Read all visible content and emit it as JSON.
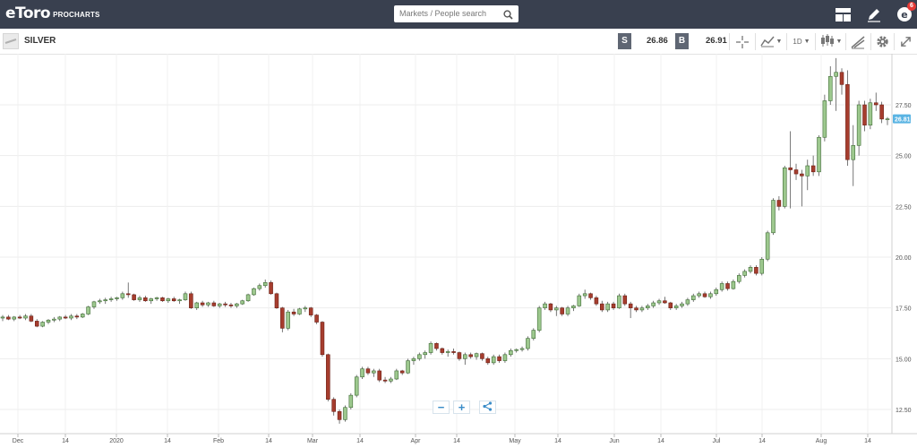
{
  "app": {
    "logo": "eToro",
    "logo_sub": "PROCHARTS",
    "search_placeholder": "Markets / People search",
    "notification_count": "6",
    "icons": [
      "layout-icon",
      "edit-icon",
      "user-avatar-icon"
    ]
  },
  "instrument": {
    "name": "SILVER",
    "sell_label": "S",
    "sell_price": "26.86",
    "buy_label": "B",
    "buy_price": "26.91",
    "interval": "1D"
  },
  "colors": {
    "up": "#9dc88e",
    "down": "#a63d2e",
    "price_tag": "#5ab4e3",
    "topbar": "#39404f"
  },
  "chart_data": {
    "type": "candlestick",
    "title": "SILVER",
    "last_price": 26.81,
    "y_ticks": [
      12.5,
      15.0,
      17.5,
      20.0,
      22.5,
      25.0,
      27.5
    ],
    "y_tick_labels": [
      "12.50",
      "15.00",
      "17.50",
      "20.00",
      "22.50",
      "25.00",
      "27.50"
    ],
    "x_tick_labels": [
      "Dec",
      "14",
      "2020",
      "14",
      "Feb",
      "14",
      "Mar",
      "14",
      "Apr",
      "14",
      "May",
      "14",
      "Jun",
      "14",
      "Jul",
      "14",
      "Aug",
      "14"
    ],
    "grid": true,
    "candles": [
      {
        "o": 17.0,
        "h": 17.15,
        "l": 16.85,
        "c": 17.05
      },
      {
        "o": 17.05,
        "h": 17.15,
        "l": 16.9,
        "c": 16.95
      },
      {
        "o": 16.95,
        "h": 17.1,
        "l": 16.85,
        "c": 17.05
      },
      {
        "o": 17.05,
        "h": 17.15,
        "l": 16.95,
        "c": 17.0
      },
      {
        "o": 17.0,
        "h": 17.2,
        "l": 16.9,
        "c": 17.1
      },
      {
        "o": 17.1,
        "h": 17.2,
        "l": 16.8,
        "c": 16.85
      },
      {
        "o": 16.85,
        "h": 16.95,
        "l": 16.55,
        "c": 16.6
      },
      {
        "o": 16.6,
        "h": 16.85,
        "l": 16.55,
        "c": 16.8
      },
      {
        "o": 16.8,
        "h": 16.95,
        "l": 16.7,
        "c": 16.9
      },
      {
        "o": 16.9,
        "h": 17.05,
        "l": 16.8,
        "c": 16.95
      },
      {
        "o": 16.95,
        "h": 17.1,
        "l": 16.85,
        "c": 17.05
      },
      {
        "o": 17.05,
        "h": 17.15,
        "l": 16.95,
        "c": 17.0
      },
      {
        "o": 17.0,
        "h": 17.2,
        "l": 16.9,
        "c": 17.1
      },
      {
        "o": 17.1,
        "h": 17.2,
        "l": 16.95,
        "c": 17.05
      },
      {
        "o": 17.05,
        "h": 17.25,
        "l": 17.0,
        "c": 17.2
      },
      {
        "o": 17.2,
        "h": 17.6,
        "l": 17.15,
        "c": 17.55
      },
      {
        "o": 17.55,
        "h": 17.85,
        "l": 17.45,
        "c": 17.8
      },
      {
        "o": 17.8,
        "h": 17.95,
        "l": 17.7,
        "c": 17.85
      },
      {
        "o": 17.85,
        "h": 18.0,
        "l": 17.7,
        "c": 17.9
      },
      {
        "o": 17.9,
        "h": 18.05,
        "l": 17.8,
        "c": 17.95
      },
      {
        "o": 17.95,
        "h": 18.05,
        "l": 17.85,
        "c": 18.0
      },
      {
        "o": 18.0,
        "h": 18.3,
        "l": 17.9,
        "c": 18.2
      },
      {
        "o": 18.2,
        "h": 18.75,
        "l": 18.0,
        "c": 18.15
      },
      {
        "o": 18.15,
        "h": 18.2,
        "l": 17.85,
        "c": 17.9
      },
      {
        "o": 17.9,
        "h": 18.1,
        "l": 17.8,
        "c": 18.0
      },
      {
        "o": 18.0,
        "h": 18.1,
        "l": 17.8,
        "c": 17.85
      },
      {
        "o": 17.85,
        "h": 18.0,
        "l": 17.7,
        "c": 17.95
      },
      {
        "o": 17.95,
        "h": 18.05,
        "l": 17.85,
        "c": 18.0
      },
      {
        "o": 18.0,
        "h": 18.05,
        "l": 17.8,
        "c": 17.85
      },
      {
        "o": 17.85,
        "h": 18.0,
        "l": 17.75,
        "c": 17.95
      },
      {
        "o": 17.95,
        "h": 18.05,
        "l": 17.8,
        "c": 17.85
      },
      {
        "o": 17.85,
        "h": 17.95,
        "l": 17.7,
        "c": 17.9
      },
      {
        "o": 17.9,
        "h": 18.3,
        "l": 17.85,
        "c": 18.2
      },
      {
        "o": 18.2,
        "h": 18.3,
        "l": 17.45,
        "c": 17.5
      },
      {
        "o": 17.5,
        "h": 17.8,
        "l": 17.4,
        "c": 17.75
      },
      {
        "o": 17.75,
        "h": 17.85,
        "l": 17.55,
        "c": 17.65
      },
      {
        "o": 17.65,
        "h": 17.8,
        "l": 17.55,
        "c": 17.75
      },
      {
        "o": 17.75,
        "h": 17.85,
        "l": 17.55,
        "c": 17.6
      },
      {
        "o": 17.6,
        "h": 17.75,
        "l": 17.5,
        "c": 17.7
      },
      {
        "o": 17.7,
        "h": 17.8,
        "l": 17.55,
        "c": 17.65
      },
      {
        "o": 17.65,
        "h": 17.75,
        "l": 17.5,
        "c": 17.6
      },
      {
        "o": 17.6,
        "h": 17.75,
        "l": 17.5,
        "c": 17.7
      },
      {
        "o": 17.7,
        "h": 17.9,
        "l": 17.65,
        "c": 17.85
      },
      {
        "o": 17.85,
        "h": 18.2,
        "l": 17.8,
        "c": 18.15
      },
      {
        "o": 18.15,
        "h": 18.5,
        "l": 18.1,
        "c": 18.45
      },
      {
        "o": 18.45,
        "h": 18.7,
        "l": 18.35,
        "c": 18.6
      },
      {
        "o": 18.6,
        "h": 18.9,
        "l": 18.5,
        "c": 18.75
      },
      {
        "o": 18.75,
        "h": 18.85,
        "l": 18.15,
        "c": 18.2
      },
      {
        "o": 18.2,
        "h": 18.25,
        "l": 17.45,
        "c": 17.5
      },
      {
        "o": 17.5,
        "h": 17.55,
        "l": 16.3,
        "c": 16.5
      },
      {
        "o": 16.5,
        "h": 17.4,
        "l": 16.4,
        "c": 17.3
      },
      {
        "o": 17.3,
        "h": 17.45,
        "l": 17.1,
        "c": 17.2
      },
      {
        "o": 17.2,
        "h": 17.5,
        "l": 17.15,
        "c": 17.45
      },
      {
        "o": 17.45,
        "h": 17.6,
        "l": 17.3,
        "c": 17.5
      },
      {
        "o": 17.5,
        "h": 17.55,
        "l": 17.05,
        "c": 17.15
      },
      {
        "o": 17.15,
        "h": 17.2,
        "l": 16.7,
        "c": 16.8
      },
      {
        "o": 16.8,
        "h": 16.85,
        "l": 15.1,
        "c": 15.2
      },
      {
        "o": 15.2,
        "h": 15.25,
        "l": 12.9,
        "c": 13.0
      },
      {
        "o": 13.0,
        "h": 13.1,
        "l": 12.2,
        "c": 12.4
      },
      {
        "o": 12.4,
        "h": 12.5,
        "l": 11.8,
        "c": 12.0
      },
      {
        "o": 12.0,
        "h": 12.7,
        "l": 11.9,
        "c": 12.6
      },
      {
        "o": 12.6,
        "h": 13.3,
        "l": 12.5,
        "c": 13.2
      },
      {
        "o": 13.2,
        "h": 14.2,
        "l": 13.1,
        "c": 14.1
      },
      {
        "o": 14.1,
        "h": 14.6,
        "l": 14.0,
        "c": 14.5
      },
      {
        "o": 14.5,
        "h": 14.6,
        "l": 14.2,
        "c": 14.3
      },
      {
        "o": 14.3,
        "h": 14.5,
        "l": 14.1,
        "c": 14.4
      },
      {
        "o": 14.4,
        "h": 14.5,
        "l": 13.85,
        "c": 13.95
      },
      {
        "o": 13.95,
        "h": 14.1,
        "l": 13.8,
        "c": 13.9
      },
      {
        "o": 13.9,
        "h": 14.1,
        "l": 13.8,
        "c": 14.0
      },
      {
        "o": 14.0,
        "h": 14.5,
        "l": 13.95,
        "c": 14.4
      },
      {
        "o": 14.4,
        "h": 14.45,
        "l": 14.2,
        "c": 14.3
      },
      {
        "o": 14.3,
        "h": 15.0,
        "l": 14.25,
        "c": 14.9
      },
      {
        "o": 14.9,
        "h": 15.1,
        "l": 14.7,
        "c": 15.0
      },
      {
        "o": 15.0,
        "h": 15.3,
        "l": 14.9,
        "c": 15.2
      },
      {
        "o": 15.2,
        "h": 15.4,
        "l": 15.0,
        "c": 15.3
      },
      {
        "o": 15.3,
        "h": 15.85,
        "l": 15.2,
        "c": 15.75
      },
      {
        "o": 15.75,
        "h": 15.8,
        "l": 15.4,
        "c": 15.5
      },
      {
        "o": 15.5,
        "h": 15.55,
        "l": 15.2,
        "c": 15.3
      },
      {
        "o": 15.3,
        "h": 15.45,
        "l": 15.1,
        "c": 15.35
      },
      {
        "o": 15.35,
        "h": 15.5,
        "l": 15.2,
        "c": 15.3
      },
      {
        "o": 15.3,
        "h": 15.35,
        "l": 14.9,
        "c": 15.0
      },
      {
        "o": 15.0,
        "h": 15.3,
        "l": 14.7,
        "c": 15.2
      },
      {
        "o": 15.2,
        "h": 15.3,
        "l": 15.0,
        "c": 15.1
      },
      {
        "o": 15.1,
        "h": 15.3,
        "l": 14.95,
        "c": 15.25
      },
      {
        "o": 15.25,
        "h": 15.3,
        "l": 14.9,
        "c": 15.0
      },
      {
        "o": 15.0,
        "h": 15.1,
        "l": 14.7,
        "c": 14.8
      },
      {
        "o": 14.8,
        "h": 15.2,
        "l": 14.7,
        "c": 15.1
      },
      {
        "o": 15.1,
        "h": 15.2,
        "l": 14.8,
        "c": 14.9
      },
      {
        "o": 14.9,
        "h": 15.3,
        "l": 14.8,
        "c": 15.2
      },
      {
        "o": 15.2,
        "h": 15.5,
        "l": 15.1,
        "c": 15.4
      },
      {
        "o": 15.4,
        "h": 15.5,
        "l": 15.3,
        "c": 15.45
      },
      {
        "o": 15.45,
        "h": 15.6,
        "l": 15.35,
        "c": 15.5
      },
      {
        "o": 15.5,
        "h": 16.1,
        "l": 15.4,
        "c": 16.0
      },
      {
        "o": 16.0,
        "h": 16.5,
        "l": 15.9,
        "c": 16.4
      },
      {
        "o": 16.4,
        "h": 17.6,
        "l": 16.3,
        "c": 17.5
      },
      {
        "o": 17.5,
        "h": 17.8,
        "l": 17.4,
        "c": 17.7
      },
      {
        "o": 17.7,
        "h": 17.75,
        "l": 17.3,
        "c": 17.4
      },
      {
        "o": 17.4,
        "h": 17.6,
        "l": 17.1,
        "c": 17.5
      },
      {
        "o": 17.5,
        "h": 17.55,
        "l": 17.1,
        "c": 17.2
      },
      {
        "o": 17.2,
        "h": 17.6,
        "l": 17.1,
        "c": 17.5
      },
      {
        "o": 17.5,
        "h": 17.65,
        "l": 17.35,
        "c": 17.6
      },
      {
        "o": 17.6,
        "h": 18.2,
        "l": 17.55,
        "c": 18.1
      },
      {
        "o": 18.1,
        "h": 18.4,
        "l": 17.95,
        "c": 18.2
      },
      {
        "o": 18.2,
        "h": 18.25,
        "l": 17.9,
        "c": 18.0
      },
      {
        "o": 18.0,
        "h": 18.1,
        "l": 17.6,
        "c": 17.7
      },
      {
        "o": 17.7,
        "h": 17.85,
        "l": 17.3,
        "c": 17.4
      },
      {
        "o": 17.4,
        "h": 17.8,
        "l": 17.3,
        "c": 17.7
      },
      {
        "o": 17.7,
        "h": 17.8,
        "l": 17.4,
        "c": 17.5
      },
      {
        "o": 17.5,
        "h": 18.2,
        "l": 17.45,
        "c": 18.1
      },
      {
        "o": 18.1,
        "h": 18.2,
        "l": 17.6,
        "c": 17.7
      },
      {
        "o": 17.7,
        "h": 17.8,
        "l": 17.0,
        "c": 17.5
      },
      {
        "o": 17.5,
        "h": 17.6,
        "l": 17.3,
        "c": 17.4
      },
      {
        "o": 17.4,
        "h": 17.6,
        "l": 17.3,
        "c": 17.5
      },
      {
        "o": 17.5,
        "h": 17.7,
        "l": 17.4,
        "c": 17.6
      },
      {
        "o": 17.6,
        "h": 17.85,
        "l": 17.5,
        "c": 17.75
      },
      {
        "o": 17.75,
        "h": 17.95,
        "l": 17.65,
        "c": 17.85
      },
      {
        "o": 17.85,
        "h": 18.05,
        "l": 17.7,
        "c": 17.75
      },
      {
        "o": 17.75,
        "h": 17.8,
        "l": 17.4,
        "c": 17.5
      },
      {
        "o": 17.5,
        "h": 17.7,
        "l": 17.4,
        "c": 17.6
      },
      {
        "o": 17.6,
        "h": 17.8,
        "l": 17.5,
        "c": 17.7
      },
      {
        "o": 17.7,
        "h": 18.0,
        "l": 17.6,
        "c": 17.9
      },
      {
        "o": 17.9,
        "h": 18.2,
        "l": 17.8,
        "c": 18.1
      },
      {
        "o": 18.1,
        "h": 18.3,
        "l": 18.0,
        "c": 18.2
      },
      {
        "o": 18.2,
        "h": 18.3,
        "l": 18.0,
        "c": 18.05
      },
      {
        "o": 18.05,
        "h": 18.3,
        "l": 17.95,
        "c": 18.2
      },
      {
        "o": 18.2,
        "h": 18.5,
        "l": 18.1,
        "c": 18.4
      },
      {
        "o": 18.4,
        "h": 18.8,
        "l": 18.3,
        "c": 18.7
      },
      {
        "o": 18.7,
        "h": 18.8,
        "l": 18.35,
        "c": 18.45
      },
      {
        "o": 18.45,
        "h": 18.9,
        "l": 18.4,
        "c": 18.8
      },
      {
        "o": 18.8,
        "h": 19.2,
        "l": 18.7,
        "c": 19.1
      },
      {
        "o": 19.1,
        "h": 19.4,
        "l": 19.0,
        "c": 19.3
      },
      {
        "o": 19.3,
        "h": 19.6,
        "l": 19.2,
        "c": 19.5
      },
      {
        "o": 19.5,
        "h": 19.6,
        "l": 19.1,
        "c": 19.2
      },
      {
        "o": 19.2,
        "h": 20.0,
        "l": 19.1,
        "c": 19.9
      },
      {
        "o": 19.9,
        "h": 21.3,
        "l": 19.8,
        "c": 21.2
      },
      {
        "o": 21.2,
        "h": 22.9,
        "l": 21.1,
        "c": 22.8
      },
      {
        "o": 22.8,
        "h": 23.0,
        "l": 22.3,
        "c": 22.5
      },
      {
        "o": 22.5,
        "h": 24.5,
        "l": 22.4,
        "c": 24.4
      },
      {
        "o": 24.4,
        "h": 26.2,
        "l": 22.4,
        "c": 24.3
      },
      {
        "o": 24.3,
        "h": 24.6,
        "l": 23.8,
        "c": 24.1
      },
      {
        "o": 24.1,
        "h": 24.3,
        "l": 22.5,
        "c": 24.0
      },
      {
        "o": 24.0,
        "h": 24.8,
        "l": 23.3,
        "c": 24.5
      },
      {
        "o": 24.5,
        "h": 25.0,
        "l": 24.0,
        "c": 24.2
      },
      {
        "o": 24.2,
        "h": 26.0,
        "l": 24.0,
        "c": 25.9
      },
      {
        "o": 25.9,
        "h": 28.0,
        "l": 25.7,
        "c": 27.7
      },
      {
        "o": 27.7,
        "h": 29.4,
        "l": 27.5,
        "c": 28.9
      },
      {
        "o": 28.9,
        "h": 29.8,
        "l": 27.2,
        "c": 29.1
      },
      {
        "o": 29.1,
        "h": 29.3,
        "l": 28.0,
        "c": 28.5
      },
      {
        "o": 28.5,
        "h": 29.2,
        "l": 24.5,
        "c": 24.8
      },
      {
        "o": 24.8,
        "h": 26.5,
        "l": 23.5,
        "c": 25.5
      },
      {
        "o": 25.5,
        "h": 27.7,
        "l": 25.0,
        "c": 27.5
      },
      {
        "o": 27.5,
        "h": 27.7,
        "l": 26.2,
        "c": 26.5
      },
      {
        "o": 26.5,
        "h": 27.8,
        "l": 26.3,
        "c": 27.6
      },
      {
        "o": 27.6,
        "h": 28.1,
        "l": 27.2,
        "c": 27.5
      },
      {
        "o": 27.5,
        "h": 27.65,
        "l": 26.6,
        "c": 26.8
      },
      {
        "o": 26.8,
        "h": 26.9,
        "l": 26.5,
        "c": 26.81
      }
    ]
  }
}
